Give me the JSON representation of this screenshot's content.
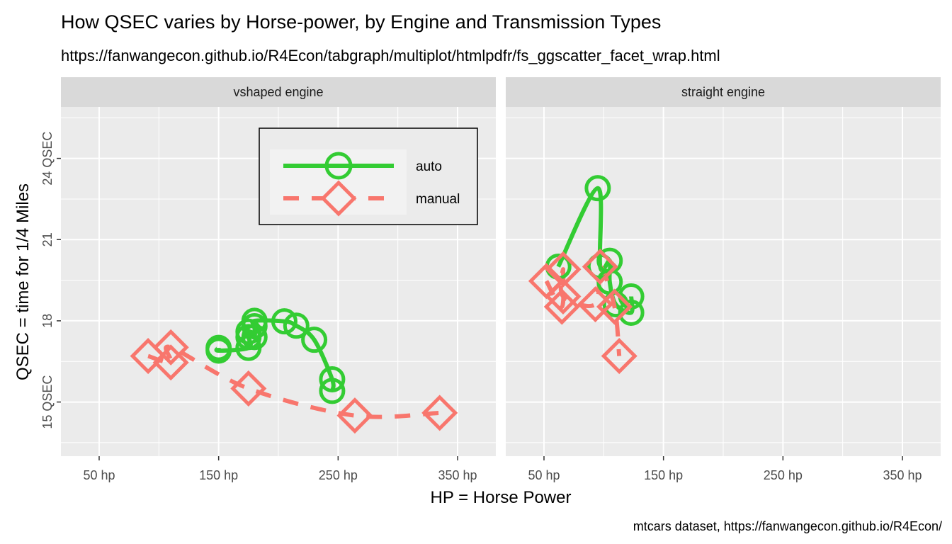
{
  "chart_data": {
    "type": "scatter",
    "title": "How QSEC varies by Horse-power, by Engine and Transmission Types",
    "subtitle": "https://fanwangecon.github.io/R4Econ/tabgraph/multiplot/htmlpdfr/fs_ggscatter_facet_wrap.html",
    "caption": "mtcars dataset, https://fanwangecon.github.io/R4Econ/",
    "xlabel": "HP = Horse Power",
    "ylabel": "QSEC = time for 1/4 Miles",
    "xlim": [
      18,
      382
    ],
    "ylim": [
      13,
      25.9
    ],
    "x_breaks": [
      50,
      150,
      250,
      350
    ],
    "x_tick_labels": [
      "50 hp",
      "150 hp",
      "250 hp",
      "350 hp"
    ],
    "y_breaks": [
      15,
      18,
      21,
      24
    ],
    "y_tick_labels": [
      "15 QSEC",
      "18",
      "21",
      "24 QSEC"
    ],
    "grid": true,
    "legend_position": "top-right of left panel",
    "colors": {
      "auto": "#33cc33",
      "manual": "#f8766d",
      "panel_bg": "#ebebeb",
      "strip_bg": "#d9d9d9",
      "grid": "#ffffff"
    },
    "legend": [
      {
        "label": "auto",
        "shape": "circle",
        "line": "solid"
      },
      {
        "label": "manual",
        "shape": "diamond",
        "line": "dashed"
      }
    ],
    "facets": [
      {
        "label": "vshaped engine",
        "series": [
          {
            "name": "auto",
            "x": [
              150,
              150,
              175,
              175,
              175,
              180,
              180,
              180,
              205,
              215,
              230,
              245,
              245
            ],
            "y": [
              17.0,
              16.9,
              17.0,
              17.4,
              17.6,
              17.4,
              17.8,
              18.0,
              17.98,
              17.82,
              17.3,
              15.84,
              15.41
            ]
          },
          {
            "name": "manual",
            "x": [
              91,
              110,
              110,
              175,
              264,
              335
            ],
            "y": [
              16.7,
              16.46,
              17.02,
              15.5,
              14.5,
              14.6
            ]
          }
        ]
      },
      {
        "label": "straight engine",
        "series": [
          {
            "name": "auto",
            "x": [
              62,
              95,
              97,
              105,
              105,
              110,
              123,
              123
            ],
            "y": [
              20.0,
              22.9,
              20.01,
              20.22,
              19.44,
              18.61,
              18.3,
              18.9
            ]
          },
          {
            "name": "manual",
            "x": [
              52,
              65,
              66,
              66,
              93,
              97,
              109,
              113
            ],
            "y": [
              19.47,
              18.52,
              19.9,
              18.9,
              18.61,
              20.0,
              18.52,
              16.7
            ]
          }
        ]
      }
    ]
  }
}
